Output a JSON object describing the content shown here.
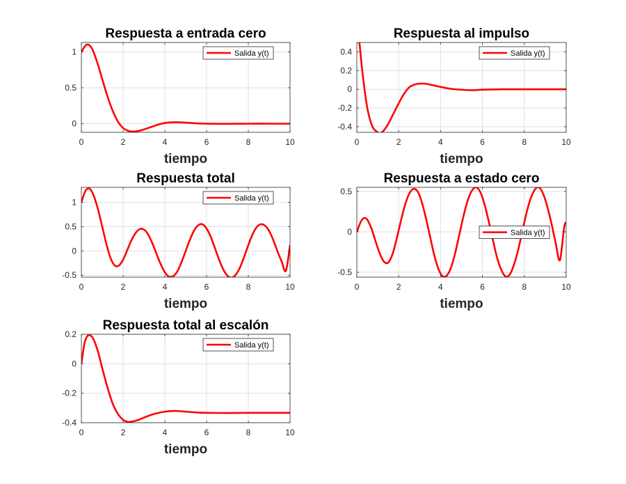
{
  "colors": {
    "line": "#ff0000",
    "grid": "#dfdfdf",
    "axis": "#262626"
  },
  "chart_data": [
    {
      "type": "line",
      "title": "Respuesta a entrada cero",
      "xlabel": "tiempo",
      "ylabel": "",
      "xlim": [
        0,
        10
      ],
      "ylim": [
        -0.12,
        1.13
      ],
      "xticks": [
        0,
        2,
        4,
        6,
        8,
        10
      ],
      "yticks": [
        0,
        0.5,
        1
      ],
      "ytick_labels": [
        "0",
        "0.5",
        "1"
      ],
      "grid": true,
      "legend": "top-right",
      "series": [
        {
          "name": "Salida y(t)",
          "x": [
            0,
            0.25,
            0.5,
            0.75,
            1.0,
            1.25,
            1.5,
            1.75,
            2.0,
            2.25,
            2.5,
            2.75,
            3.0,
            3.5,
            4.0,
            4.5,
            5.0,
            5.5,
            6.0,
            7.0,
            8.0,
            9.0,
            10.0
          ],
          "y": [
            1.0,
            1.1,
            1.05,
            0.86,
            0.62,
            0.38,
            0.18,
            0.03,
            -0.06,
            -0.1,
            -0.11,
            -0.1,
            -0.08,
            -0.03,
            0.01,
            0.02,
            0.015,
            0.005,
            0.0,
            -0.002,
            0.0,
            0.0,
            0.0
          ]
        }
      ]
    },
    {
      "type": "line",
      "title": "Respuesta al impulso",
      "xlabel": "tiempo",
      "ylabel": "",
      "xlim": [
        0,
        10
      ],
      "ylim": [
        -0.46,
        0.5
      ],
      "xticks": [
        0,
        2,
        4,
        6,
        8,
        10
      ],
      "yticks": [
        -0.4,
        -0.2,
        0,
        0.2,
        0.4
      ],
      "ytick_labels": [
        "-0.4",
        "-0.2",
        "0",
        "0.2",
        "0.4"
      ],
      "grid": true,
      "legend": "top-right",
      "series": [
        {
          "name": "Salida y(t)",
          "x": [
            0,
            0.25,
            0.5,
            0.75,
            1.0,
            1.1,
            1.25,
            1.5,
            1.75,
            2.0,
            2.25,
            2.5,
            2.75,
            3.0,
            3.25,
            3.5,
            4.0,
            4.5,
            5.0,
            5.5,
            6.0,
            7.0,
            8.0,
            9.0,
            10.0
          ],
          "y": [
            0.8,
            0.22,
            -0.2,
            -0.4,
            -0.46,
            -0.47,
            -0.45,
            -0.37,
            -0.26,
            -0.15,
            -0.05,
            0.02,
            0.05,
            0.06,
            0.06,
            0.05,
            0.025,
            0.005,
            -0.005,
            -0.01,
            -0.005,
            0.0,
            0.0,
            0.0,
            0.0
          ]
        }
      ]
    },
    {
      "type": "line",
      "title": "Respuesta total",
      "xlabel": "tiempo",
      "ylabel": "",
      "xlim": [
        0,
        10
      ],
      "ylim": [
        -0.54,
        1.31
      ],
      "xticks": [
        0,
        2,
        4,
        6,
        8,
        10
      ],
      "yticks": [
        -0.5,
        0,
        0.5,
        1
      ],
      "ytick_labels": [
        "-0.5",
        "0",
        "0.5",
        "1"
      ],
      "grid": true,
      "legend": "top-right",
      "series": [
        {
          "name": "Salida y(t)",
          "x": [
            0,
            0.2,
            0.4,
            0.6,
            0.8,
            1.0,
            1.2,
            1.4,
            1.6,
            1.8,
            2.0,
            2.2,
            2.4,
            2.6,
            2.8,
            3.0,
            3.2,
            3.4,
            3.6,
            3.8,
            4.0,
            4.2,
            4.4,
            4.6,
            4.8,
            5.0,
            5.2,
            5.4,
            5.6,
            5.8,
            6.0,
            6.2,
            6.4,
            6.6,
            6.8,
            7.0,
            7.2,
            7.4,
            7.6,
            7.8,
            8.0,
            8.2,
            8.4,
            8.6,
            8.8,
            9.0,
            9.2,
            9.4,
            9.6,
            9.8,
            10.0
          ],
          "y": [
            1.0,
            1.24,
            1.28,
            1.13,
            0.85,
            0.5,
            0.14,
            -0.15,
            -0.3,
            -0.3,
            -0.18,
            0.02,
            0.22,
            0.37,
            0.45,
            0.44,
            0.34,
            0.16,
            -0.06,
            -0.27,
            -0.44,
            -0.53,
            -0.52,
            -0.42,
            -0.23,
            -0.0,
            0.23,
            0.42,
            0.53,
            0.55,
            0.46,
            0.29,
            0.06,
            -0.18,
            -0.38,
            -0.51,
            -0.55,
            -0.49,
            -0.34,
            -0.12,
            0.12,
            0.34,
            0.49,
            0.55,
            0.52,
            0.41,
            0.22,
            -0.01,
            -0.22,
            -0.41,
            0.12
          ]
        }
      ]
    },
    {
      "type": "line",
      "title": "Respuesta a estado cero",
      "xlabel": "tiempo",
      "ylabel": "",
      "xlim": [
        0,
        10
      ],
      "ylim": [
        -0.56,
        0.55
      ],
      "xticks": [
        0,
        2,
        4,
        6,
        8,
        10
      ],
      "yticks": [
        -0.5,
        0,
        0.5
      ],
      "ytick_labels": [
        "-0.5",
        "0",
        "0.5"
      ],
      "grid": true,
      "legend": "center-right",
      "series": [
        {
          "name": "Salida y(t)",
          "x": [
            0,
            0.2,
            0.35,
            0.5,
            0.7,
            0.9,
            1.1,
            1.3,
            1.5,
            1.7,
            1.9,
            2.1,
            2.3,
            2.5,
            2.7,
            2.9,
            3.1,
            3.3,
            3.5,
            3.7,
            3.9,
            4.1,
            4.3,
            4.5,
            4.7,
            4.9,
            5.1,
            5.3,
            5.5,
            5.7,
            5.9,
            6.1,
            6.3,
            6.5,
            6.7,
            6.9,
            7.1,
            7.3,
            7.5,
            7.7,
            7.9,
            8.1,
            8.3,
            8.5,
            8.7,
            8.9,
            9.1,
            9.3,
            9.5,
            9.7,
            9.9,
            10.0
          ],
          "y": [
            0.0,
            0.13,
            0.17,
            0.15,
            0.04,
            -0.12,
            -0.27,
            -0.37,
            -0.38,
            -0.28,
            -0.09,
            0.13,
            0.33,
            0.47,
            0.53,
            0.5,
            0.37,
            0.17,
            -0.06,
            -0.29,
            -0.46,
            -0.55,
            -0.54,
            -0.44,
            -0.26,
            -0.03,
            0.2,
            0.39,
            0.51,
            0.55,
            0.49,
            0.34,
            0.13,
            -0.1,
            -0.32,
            -0.47,
            -0.55,
            -0.53,
            -0.41,
            -0.23,
            0.0,
            0.23,
            0.41,
            0.52,
            0.55,
            0.47,
            0.31,
            0.1,
            -0.14,
            -0.35,
            0.05,
            0.12
          ]
        }
      ]
    },
    {
      "type": "line",
      "title": "Respuesta total al escalón",
      "xlabel": "tiempo",
      "ylabel": "",
      "xlim": [
        0,
        10
      ],
      "ylim": [
        -0.4,
        0.2
      ],
      "xticks": [
        0,
        2,
        4,
        6,
        8,
        10
      ],
      "yticks": [
        -0.4,
        -0.2,
        0,
        0.2
      ],
      "ytick_labels": [
        "-0.4",
        "-0.2",
        "0",
        "0.2"
      ],
      "grid": true,
      "legend": "top-right",
      "series": [
        {
          "name": "Salida y(t)",
          "x": [
            0,
            0.15,
            0.3,
            0.45,
            0.6,
            0.8,
            1.0,
            1.25,
            1.5,
            1.75,
            2.0,
            2.25,
            2.5,
            2.75,
            3.0,
            3.5,
            4.0,
            4.5,
            5.0,
            5.5,
            6.0,
            7.0,
            8.0,
            9.0,
            10.0
          ],
          "y": [
            0.0,
            0.14,
            0.19,
            0.19,
            0.16,
            0.08,
            -0.03,
            -0.16,
            -0.27,
            -0.34,
            -0.38,
            -0.395,
            -0.39,
            -0.38,
            -0.365,
            -0.34,
            -0.325,
            -0.32,
            -0.325,
            -0.33,
            -0.333,
            -0.334,
            -0.333,
            -0.333,
            -0.333
          ]
        }
      ]
    }
  ]
}
